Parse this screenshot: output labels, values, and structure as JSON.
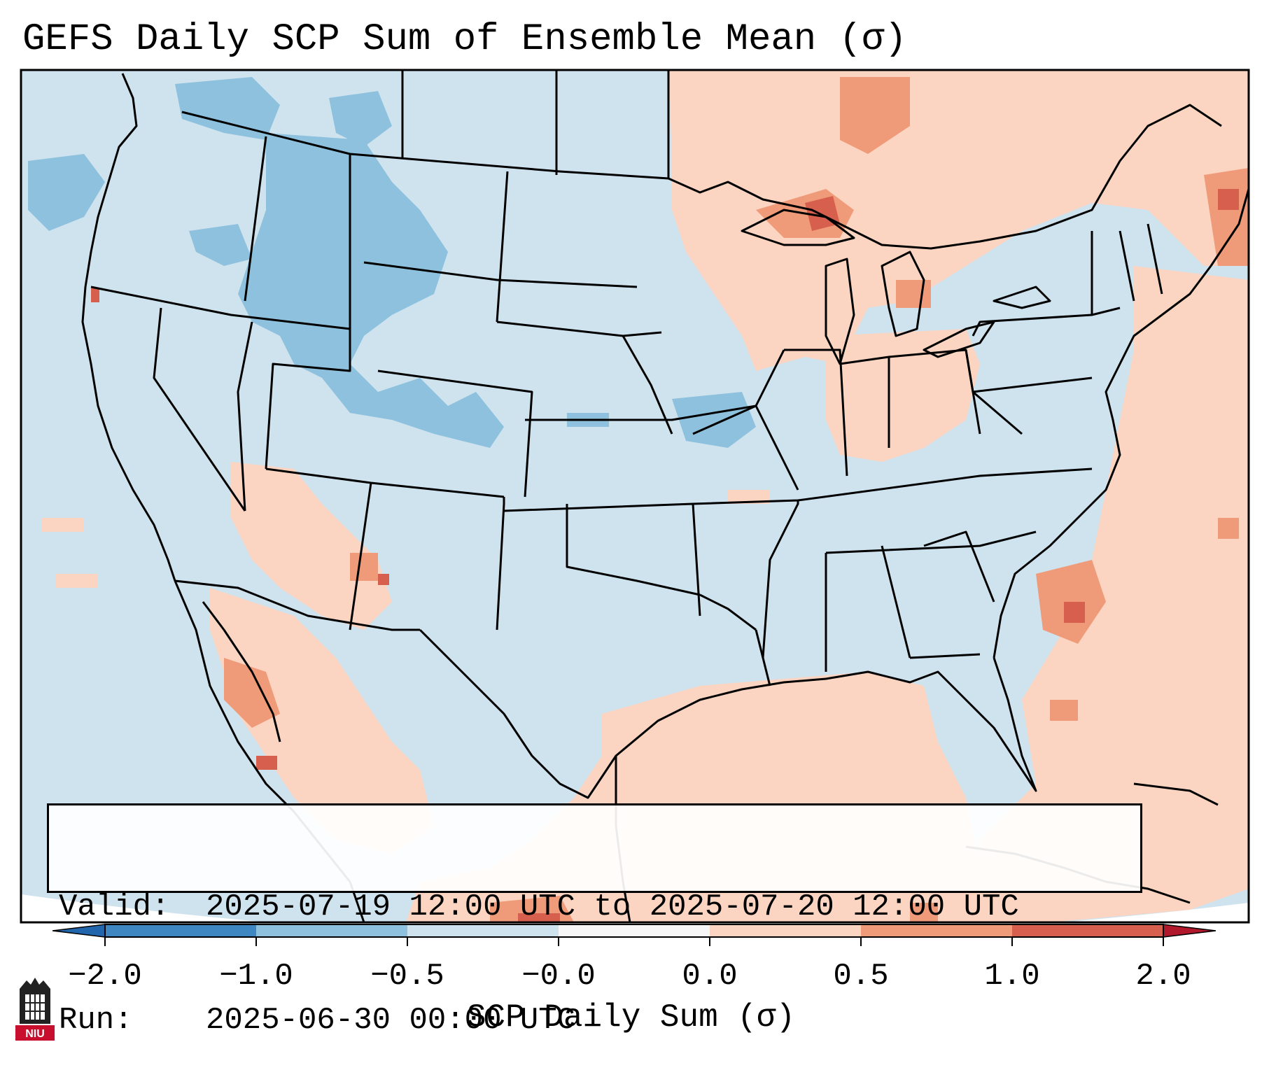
{
  "title": "GEFS Daily SCP Sum of Ensemble Mean (σ)",
  "info_box": {
    "valid_key": "Valid:",
    "valid_value": "2025-07-19 12:00 UTC to 2025-07-20 12:00 UTC",
    "run_key": "Run:",
    "run_value": "2025-06-30 00:00 UTC"
  },
  "colorbar": {
    "label": "SCP Daily Sum (σ)",
    "ticks": [
      "−2.0",
      "−1.0",
      "−0.5",
      "−0.0",
      "0.0",
      "0.5",
      "1.0",
      "2.0"
    ],
    "colors": [
      "#3f87c0",
      "#8ec1dd",
      "#cfe3ef",
      "#f7f7f7",
      "#fbd5c1",
      "#ef9b7a",
      "#d6604d",
      "#b2182b"
    ],
    "extend": "both"
  },
  "map": {
    "projection": "Lambert Conformal – CONUS",
    "background_color": "#cfe3ef",
    "outside_color": "#ffffff"
  },
  "logo": {
    "text": "NIU",
    "icon": "niu-building-logo-icon"
  }
}
